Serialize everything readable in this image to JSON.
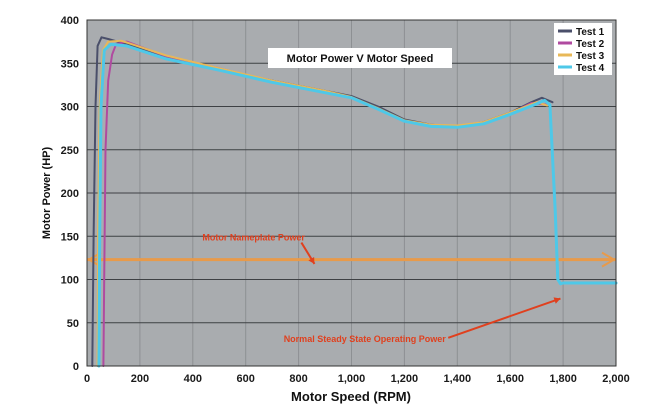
{
  "chart_data": {
    "type": "line",
    "title": "Motor Power V Motor Speed",
    "xlabel": "Motor Speed (RPM)",
    "ylabel": "Motor Power (HP)",
    "xlim": [
      0,
      2000
    ],
    "ylim": [
      0,
      400
    ],
    "x_ticks": [
      0,
      200,
      400,
      600,
      800,
      1000,
      1200,
      1400,
      1600,
      1800,
      2000
    ],
    "x_tick_labels": [
      "0",
      "200",
      "400",
      "600",
      "800",
      "1,000",
      "1,200",
      "1,400",
      "1,600",
      "1,800",
      "2,000"
    ],
    "y_ticks": [
      0,
      50,
      100,
      150,
      200,
      250,
      300,
      350,
      400
    ],
    "y_tick_labels": [
      "0",
      "50",
      "100",
      "150",
      "200",
      "250",
      "300",
      "350",
      "400"
    ],
    "grid": true,
    "legend_position": "top-right",
    "background_color": "#a9acaf",
    "series": [
      {
        "name": "Test 1",
        "color": "#4a4f6a",
        "points": [
          [
            20,
            0
          ],
          [
            25,
            150
          ],
          [
            32,
            300
          ],
          [
            40,
            370
          ],
          [
            55,
            380
          ],
          [
            80,
            378
          ],
          [
            150,
            372
          ],
          [
            300,
            356
          ],
          [
            500,
            343
          ],
          [
            700,
            330
          ],
          [
            900,
            318
          ],
          [
            1000,
            312
          ],
          [
            1100,
            300
          ],
          [
            1200,
            285
          ],
          [
            1300,
            279
          ],
          [
            1400,
            277
          ],
          [
            1500,
            282
          ],
          [
            1600,
            293
          ],
          [
            1680,
            305
          ],
          [
            1720,
            310
          ],
          [
            1760,
            305
          ]
        ]
      },
      {
        "name": "Test 2",
        "color": "#b04aa0",
        "points": [
          [
            62,
            0
          ],
          [
            65,
            100
          ],
          [
            70,
            250
          ],
          [
            80,
            330
          ],
          [
            95,
            360
          ],
          [
            110,
            372
          ],
          [
            150,
            375
          ],
          [
            300,
            358
          ],
          [
            500,
            344
          ],
          [
            700,
            329
          ],
          [
            900,
            317
          ],
          [
            1000,
            310
          ],
          [
            1100,
            297
          ],
          [
            1200,
            283
          ],
          [
            1300,
            278
          ],
          [
            1400,
            277
          ],
          [
            1500,
            281
          ],
          [
            1600,
            292
          ],
          [
            1680,
            304
          ],
          [
            1740,
            302
          ]
        ]
      },
      {
        "name": "Test 3",
        "color": "#e8b858",
        "points": [
          [
            40,
            0
          ],
          [
            42,
            150
          ],
          [
            48,
            300
          ],
          [
            60,
            365
          ],
          [
            80,
            375
          ],
          [
            130,
            376
          ],
          [
            300,
            359
          ],
          [
            500,
            344
          ],
          [
            700,
            330
          ],
          [
            900,
            318
          ],
          [
            1000,
            311
          ],
          [
            1100,
            298
          ],
          [
            1200,
            284
          ],
          [
            1300,
            279
          ],
          [
            1400,
            278
          ],
          [
            1500,
            282
          ],
          [
            1600,
            293
          ],
          [
            1700,
            305
          ],
          [
            1740,
            301
          ]
        ]
      },
      {
        "name": "Test 4",
        "color": "#4ec8e8",
        "points": [
          [
            45,
            0
          ],
          [
            48,
            150
          ],
          [
            53,
            300
          ],
          [
            65,
            365
          ],
          [
            90,
            372
          ],
          [
            150,
            370
          ],
          [
            300,
            355
          ],
          [
            500,
            342
          ],
          [
            700,
            328
          ],
          [
            900,
            316
          ],
          [
            1000,
            310
          ],
          [
            1100,
            297
          ],
          [
            1200,
            283
          ],
          [
            1300,
            277
          ],
          [
            1400,
            276
          ],
          [
            1500,
            280
          ],
          [
            1600,
            291
          ],
          [
            1700,
            303
          ],
          [
            1730,
            307
          ],
          [
            1750,
            302
          ],
          [
            1770,
            180
          ],
          [
            1780,
            100
          ],
          [
            1790,
            95
          ],
          [
            1800,
            96
          ],
          [
            2000,
            96
          ]
        ]
      }
    ],
    "reference_line": {
      "label": "Motor Nameplate Power",
      "y": 123,
      "color": "#e89a4a"
    },
    "annotations": [
      {
        "text": "Motor Nameplate Power",
        "color": "#e0401e",
        "text_anchor": [
          630,
          145
        ],
        "arrow_to": [
          860,
          118
        ]
      },
      {
        "text": "Normal Steady State Operating Power",
        "color": "#e0401e",
        "text_anchor": [
          1050,
          28
        ],
        "arrow_to": [
          1790,
          78
        ]
      }
    ]
  }
}
